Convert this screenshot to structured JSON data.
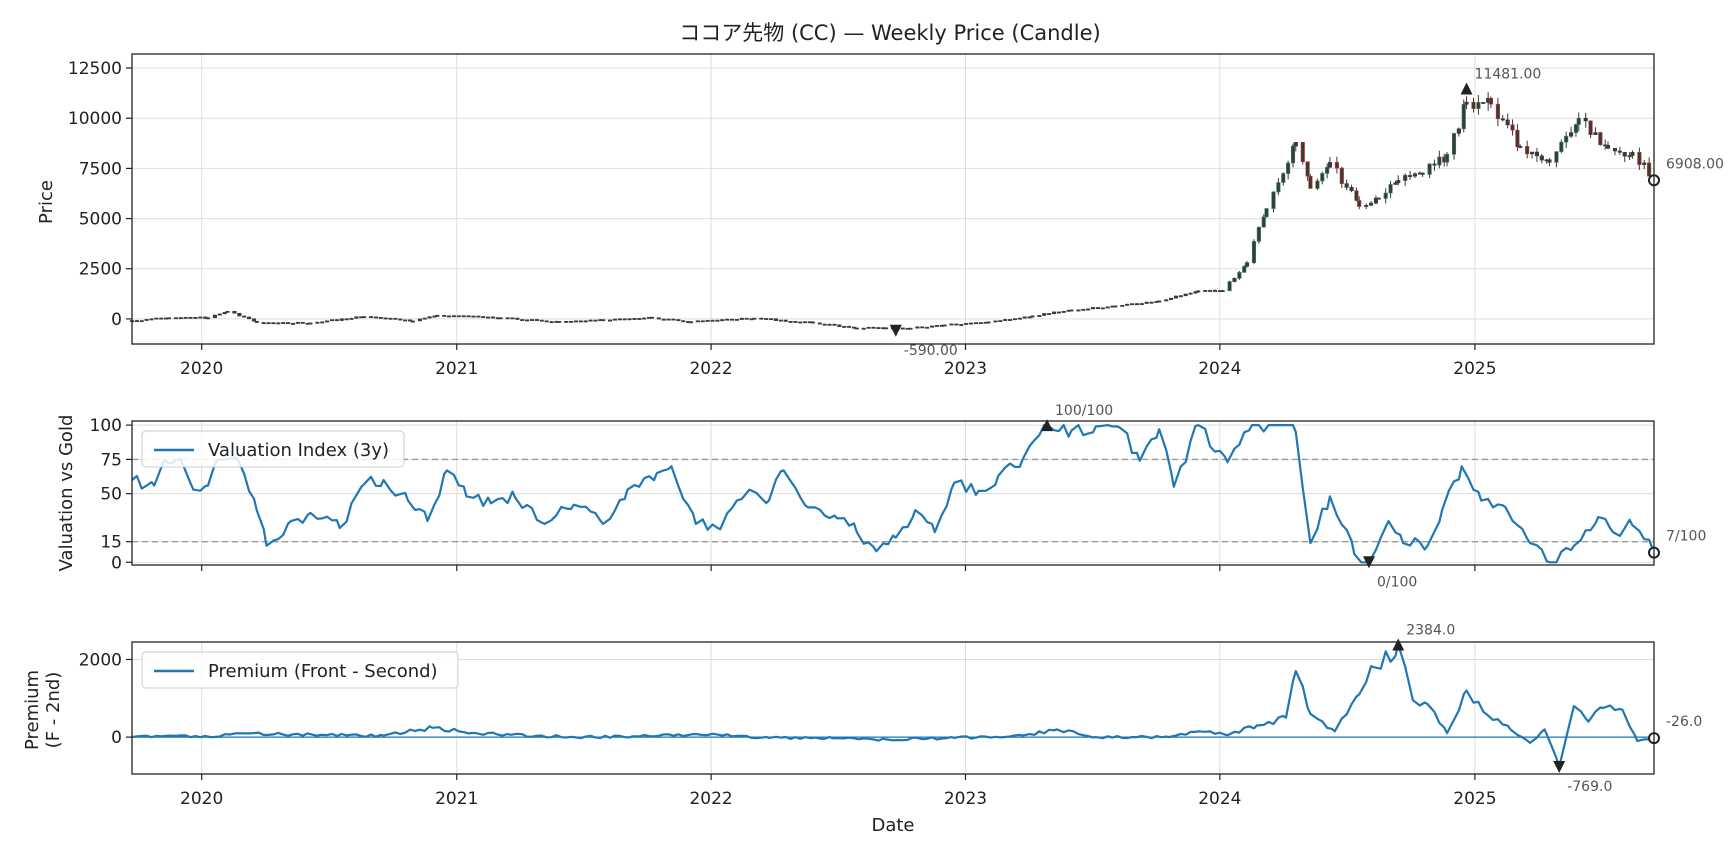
{
  "figure": {
    "title": "ココア先物 (CC) — Weekly Price (Candle)",
    "xlabel": "Date",
    "year_ticks": [
      "2020",
      "2021",
      "2022",
      "2023",
      "2024",
      "2025"
    ]
  },
  "colors": {
    "candle": "#3a3a3a",
    "candle_up": "#2e8b57",
    "candle_down": "#c0392b",
    "series": "#1f77b4",
    "reference_line": "#999999",
    "grid": "#dddddd",
    "axis": "#222222",
    "annotation": "#555555",
    "marker": "#222222"
  },
  "chart_data": [
    {
      "type": "candlestick",
      "id": "price",
      "title": "ココア先物 (CC) — Weekly Price (Candle)",
      "ylabel": "Price",
      "xlim": [
        "2019-09-23",
        "2025-09-15"
      ],
      "ylim": [
        -1250,
        13200
      ],
      "yticks": [
        0,
        2500,
        5000,
        7500,
        10000,
        12500
      ],
      "ytick_labels": [
        "0",
        "2500",
        "5000",
        "7500",
        "10000",
        "12500"
      ],
      "xtick_labels": [
        "2020",
        "2021",
        "2022",
        "2023",
        "2024",
        "2025"
      ],
      "anchors": [
        [
          "2019-09-23",
          -80
        ],
        [
          "2019-11-15",
          60
        ],
        [
          "2020-01-10",
          60
        ],
        [
          "2020-02-07",
          380
        ],
        [
          "2020-03-20",
          -180
        ],
        [
          "2020-06-05",
          -200
        ],
        [
          "2020-08-21",
          120
        ],
        [
          "2020-10-30",
          -100
        ],
        [
          "2020-12-04",
          180
        ],
        [
          "2021-03-05",
          60
        ],
        [
          "2021-05-28",
          -160
        ],
        [
          "2021-07-30",
          -60
        ],
        [
          "2021-10-08",
          60
        ],
        [
          "2021-12-03",
          -140
        ],
        [
          "2022-03-04",
          40
        ],
        [
          "2022-05-27",
          -200
        ],
        [
          "2022-07-29",
          -460
        ],
        [
          "2022-09-09",
          -440
        ],
        [
          "2022-10-14",
          -460
        ],
        [
          "2022-12-02",
          -300
        ],
        [
          "2023-02-03",
          -150
        ],
        [
          "2023-04-07",
          150
        ],
        [
          "2023-06-02",
          450
        ],
        [
          "2023-08-04",
          650
        ],
        [
          "2023-10-06",
          900
        ],
        [
          "2023-12-01",
          1400
        ],
        [
          "2024-01-05",
          1400
        ],
        [
          "2024-02-09",
          2800
        ],
        [
          "2024-03-08",
          5500
        ],
        [
          "2024-04-19",
          8800
        ],
        [
          "2024-05-10",
          6500
        ],
        [
          "2024-06-07",
          7800
        ],
        [
          "2024-07-19",
          5600
        ],
        [
          "2024-08-16",
          6000
        ],
        [
          "2024-09-13",
          6900
        ],
        [
          "2024-10-18",
          7200
        ],
        [
          "2024-11-22",
          8200
        ],
        [
          "2024-12-20",
          10800
        ],
        [
          "2025-01-24",
          10700
        ],
        [
          "2025-03-07",
          8600
        ],
        [
          "2025-04-18",
          7800
        ],
        [
          "2025-05-30",
          10000
        ],
        [
          "2025-07-11",
          8500
        ],
        [
          "2025-08-15",
          8300
        ],
        [
          "2025-09-15",
          6908
        ]
      ],
      "annotations": [
        {
          "label": "11481.00",
          "date": "2024-12-20",
          "value": 11481,
          "marker": "max"
        },
        {
          "label": "-590.00",
          "date": "2022-09-23",
          "value": -590,
          "marker": "min"
        },
        {
          "label": "6908.00",
          "date": "2025-09-15",
          "value": 6908,
          "marker": "last"
        }
      ]
    },
    {
      "type": "line",
      "id": "valuation",
      "ylabel": "Valuation vs Gold",
      "legend": "Valuation Index (3y)",
      "legend_loc": "upper-left",
      "ylim": [
        -2,
        103
      ],
      "yticks": [
        0,
        15,
        50,
        75,
        100
      ],
      "ytick_labels": [
        "0",
        "15",
        "50",
        "75",
        "100"
      ],
      "reference_lines": [
        75,
        15
      ],
      "anchors": [
        [
          "2019-09-23",
          60
        ],
        [
          "2019-10-25",
          56
        ],
        [
          "2019-11-08",
          74
        ],
        [
          "2019-12-06",
          70
        ],
        [
          "2019-12-20",
          53
        ],
        [
          "2020-01-10",
          56
        ],
        [
          "2020-01-24",
          75
        ],
        [
          "2020-02-21",
          76
        ],
        [
          "2020-03-20",
          38
        ],
        [
          "2020-04-03",
          12
        ],
        [
          "2020-05-08",
          30
        ],
        [
          "2020-06-05",
          36
        ],
        [
          "2020-07-17",
          25
        ],
        [
          "2020-08-21",
          57
        ],
        [
          "2020-09-18",
          60
        ],
        [
          "2020-10-23",
          45
        ],
        [
          "2020-11-20",
          30
        ],
        [
          "2020-12-18",
          67
        ],
        [
          "2021-01-15",
          48
        ],
        [
          "2021-02-19",
          43
        ],
        [
          "2021-03-26",
          47
        ],
        [
          "2021-05-07",
          28
        ],
        [
          "2021-06-18",
          42
        ],
        [
          "2021-07-30",
          28
        ],
        [
          "2021-09-03",
          53
        ],
        [
          "2021-10-15",
          65
        ],
        [
          "2021-11-05",
          70
        ],
        [
          "2021-12-10",
          28
        ],
        [
          "2022-01-14",
          24
        ],
        [
          "2022-02-25",
          53
        ],
        [
          "2022-03-25",
          45
        ],
        [
          "2022-04-15",
          67
        ],
        [
          "2022-05-20",
          40
        ],
        [
          "2022-07-01",
          32
        ],
        [
          "2022-07-29",
          22
        ],
        [
          "2022-08-26",
          8
        ],
        [
          "2022-09-23",
          18
        ],
        [
          "2022-10-21",
          38
        ],
        [
          "2022-11-18",
          22
        ],
        [
          "2022-12-16",
          58
        ],
        [
          "2023-01-20",
          52
        ],
        [
          "2023-02-17",
          63
        ],
        [
          "2023-03-24",
          75
        ],
        [
          "2023-04-28",
          100
        ],
        [
          "2023-06-02",
          96
        ],
        [
          "2023-07-07",
          99
        ],
        [
          "2023-08-11",
          98
        ],
        [
          "2023-09-08",
          74
        ],
        [
          "2023-10-06",
          97
        ],
        [
          "2023-10-27",
          55
        ],
        [
          "2023-12-01",
          100
        ],
        [
          "2024-01-12",
          73
        ],
        [
          "2024-02-16",
          100
        ],
        [
          "2024-03-29",
          100
        ],
        [
          "2024-04-19",
          95
        ],
        [
          "2024-05-10",
          14
        ],
        [
          "2024-06-07",
          48
        ],
        [
          "2024-07-12",
          6
        ],
        [
          "2024-08-02",
          0
        ],
        [
          "2024-08-30",
          30
        ],
        [
          "2024-09-20",
          14
        ],
        [
          "2024-10-25",
          12
        ],
        [
          "2024-11-15",
          38
        ],
        [
          "2024-12-13",
          70
        ],
        [
          "2025-01-10",
          45
        ],
        [
          "2025-02-14",
          40
        ],
        [
          "2025-03-21",
          14
        ],
        [
          "2025-04-18",
          0
        ],
        [
          "2025-05-23",
          12
        ],
        [
          "2025-06-27",
          33
        ],
        [
          "2025-07-18",
          22
        ],
        [
          "2025-08-15",
          27
        ],
        [
          "2025-09-15",
          7
        ]
      ],
      "annotations": [
        {
          "label": "100/100",
          "date": "2023-04-28",
          "value": 100,
          "marker": "max"
        },
        {
          "label": "0/100",
          "date": "2024-08-02",
          "value": 0,
          "marker": "min"
        },
        {
          "label": "7/100",
          "date": "2025-09-15",
          "value": 7,
          "marker": "last"
        }
      ]
    },
    {
      "type": "line",
      "id": "premium",
      "ylabel": "Premium\n(F - 2nd)",
      "legend": "Premium (Front - Second)",
      "legend_loc": "upper-left",
      "ylim": [
        -950,
        2450
      ],
      "yticks": [
        0,
        2000
      ],
      "ytick_labels": [
        "0",
        "2000"
      ],
      "reference_lines": [
        0
      ],
      "anchors": [
        [
          "2019-09-23",
          0
        ],
        [
          "2019-11-15",
          40
        ],
        [
          "2020-01-17",
          0
        ],
        [
          "2020-02-21",
          100
        ],
        [
          "2020-06-19",
          60
        ],
        [
          "2020-09-18",
          40
        ],
        [
          "2020-11-27",
          240
        ],
        [
          "2021-01-29",
          100
        ],
        [
          "2021-03-19",
          60
        ],
        [
          "2021-06-18",
          0
        ],
        [
          "2021-09-10",
          20
        ],
        [
          "2021-12-10",
          80
        ],
        [
          "2022-03-25",
          -20
        ],
        [
          "2022-06-24",
          -30
        ],
        [
          "2022-09-09",
          -60
        ],
        [
          "2022-12-16",
          -20
        ],
        [
          "2023-03-24",
          40
        ],
        [
          "2023-05-12",
          200
        ],
        [
          "2023-07-07",
          0
        ],
        [
          "2023-10-20",
          0
        ],
        [
          "2023-12-01",
          150
        ],
        [
          "2024-01-12",
          50
        ],
        [
          "2024-02-23",
          300
        ],
        [
          "2024-04-05",
          500
        ],
        [
          "2024-04-19",
          1700
        ],
        [
          "2024-05-10",
          600
        ],
        [
          "2024-06-14",
          150
        ],
        [
          "2024-07-19",
          1100
        ],
        [
          "2024-08-09",
          1800
        ],
        [
          "2024-09-13",
          2384
        ],
        [
          "2024-10-04",
          950
        ],
        [
          "2024-10-25",
          850
        ],
        [
          "2024-11-22",
          100
        ],
        [
          "2024-12-20",
          1200
        ],
        [
          "2025-01-17",
          600
        ],
        [
          "2025-02-21",
          200
        ],
        [
          "2025-03-21",
          -150
        ],
        [
          "2025-04-11",
          200
        ],
        [
          "2025-05-02",
          -769
        ],
        [
          "2025-05-23",
          800
        ],
        [
          "2025-06-13",
          400
        ],
        [
          "2025-07-04",
          750
        ],
        [
          "2025-08-01",
          700
        ],
        [
          "2025-08-22",
          -100
        ],
        [
          "2025-09-15",
          -26
        ]
      ],
      "annotations": [
        {
          "label": "2384.0",
          "date": "2024-09-13",
          "value": 2384,
          "marker": "max"
        },
        {
          "label": "-769.0",
          "date": "2025-05-02",
          "value": -769,
          "marker": "min"
        },
        {
          "label": "-26.0",
          "date": "2025-09-15",
          "value": -26,
          "marker": "last"
        }
      ]
    }
  ]
}
